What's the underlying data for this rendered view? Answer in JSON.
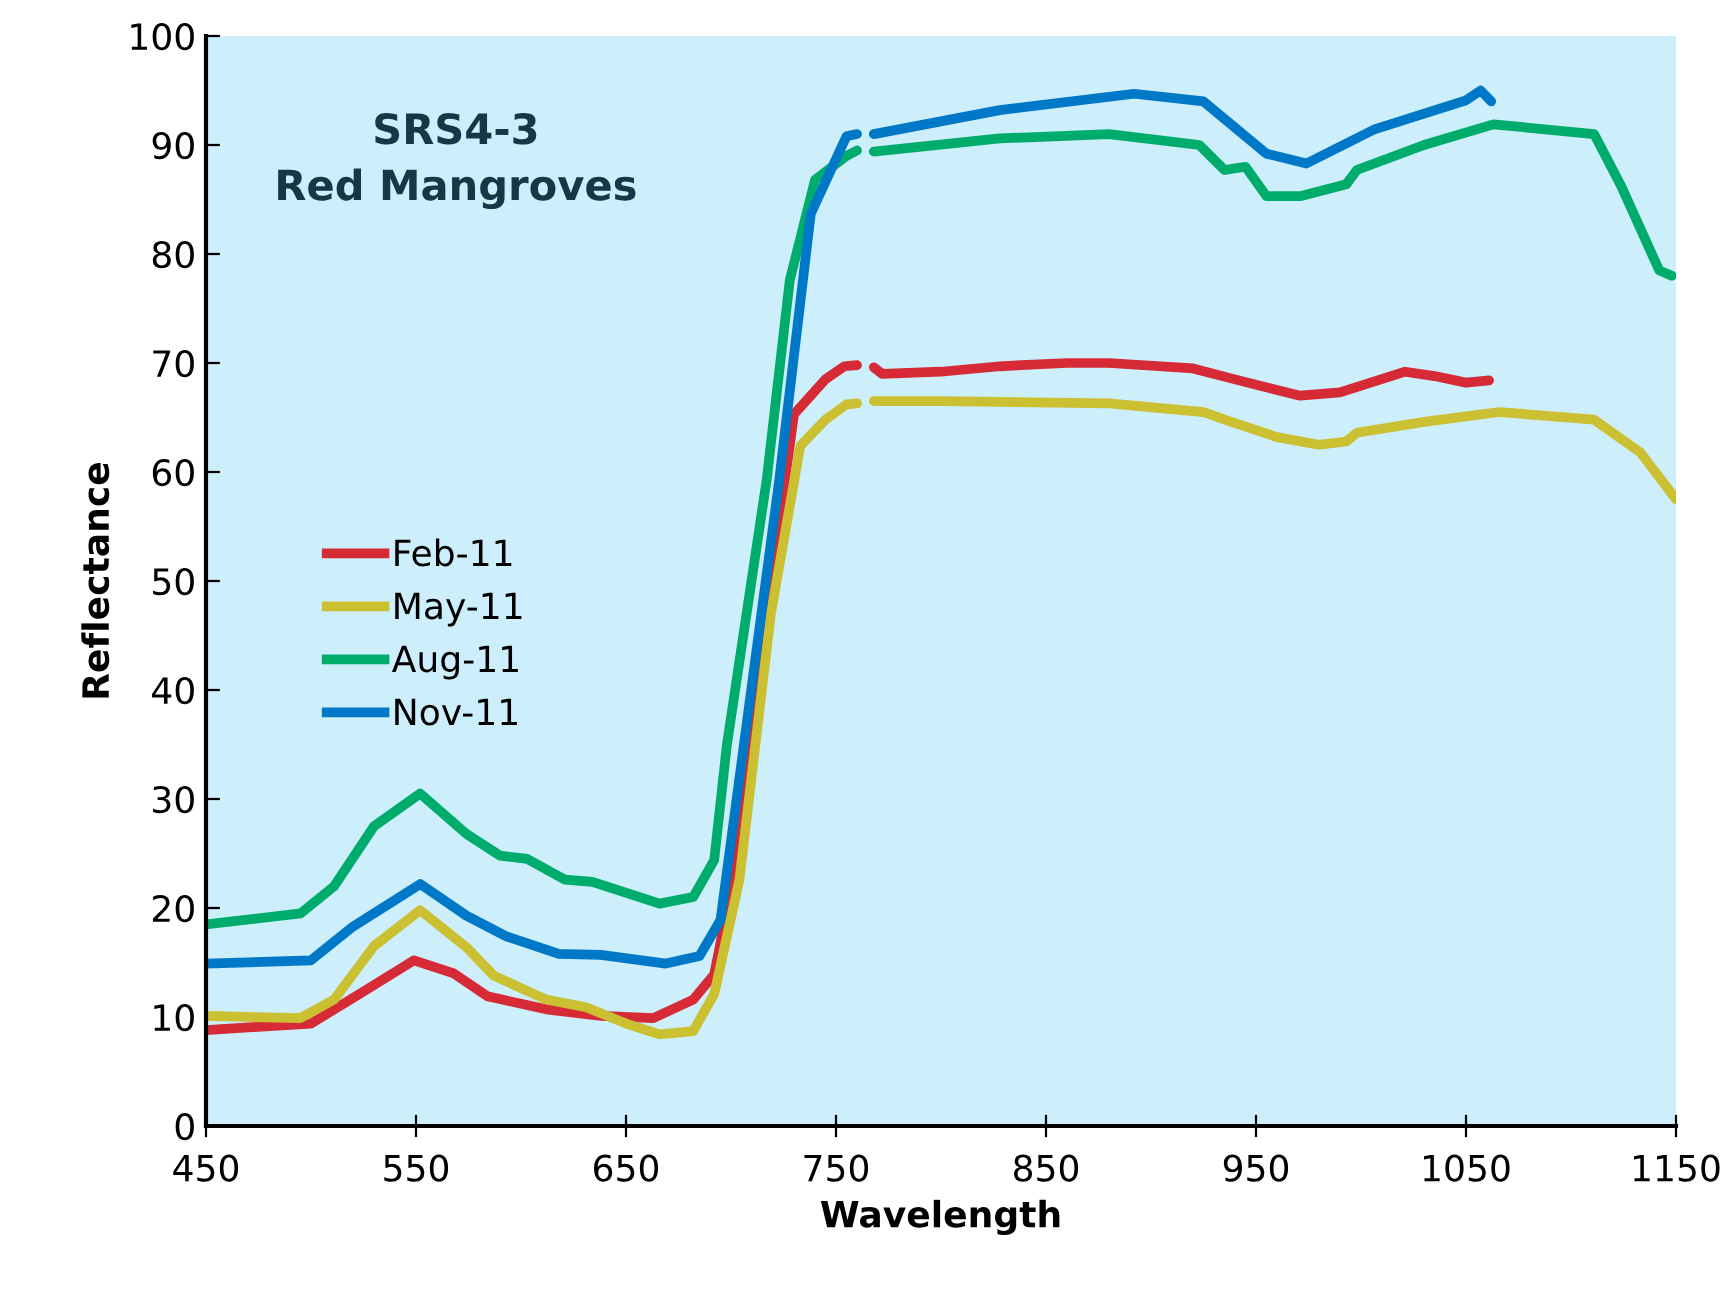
{
  "chart_data": {
    "type": "line",
    "title": "SRS4-3\nRed Mangroves",
    "xlabel": "Wavelength",
    "ylabel": "Reflectance",
    "xlim": [
      450,
      1150
    ],
    "xticks": [
      450,
      550,
      650,
      750,
      850,
      950,
      1050,
      1150
    ],
    "ylim": [
      0,
      100
    ],
    "yticks": [
      0,
      10,
      20,
      30,
      40,
      50,
      60,
      70,
      80,
      90,
      100
    ],
    "grid": false,
    "legend": "left",
    "marker": "none",
    "line_style": "solid",
    "series": [
      {
        "name": "Feb-11",
        "color": "#d62a36",
        "x": [
          450,
          500,
          523,
          549,
          568,
          584,
          612,
          638,
          663,
          682,
          692,
          701,
          717,
          730,
          745,
          754,
          760,
          762,
          768,
          772,
          800,
          828,
          860,
          880,
          920,
          940,
          971,
          990,
          1021,
          1035,
          1050,
          1061
        ],
        "values": [
          8.8,
          9.4,
          12.1,
          15.2,
          14,
          11.9,
          10.7,
          10.1,
          9.9,
          11.6,
          13.9,
          22.6,
          47,
          65.3,
          68.5,
          69.7,
          69.8,
          null,
          69.6,
          69,
          69.2,
          69.7,
          70,
          70,
          69.5,
          68.5,
          67,
          67.3,
          69.2,
          68.8,
          68.2,
          68.4
        ]
      },
      {
        "name": "May-11",
        "color": "#cbbf32",
        "x": [
          450,
          495,
          511,
          530,
          552,
          574,
          587,
          612,
          631,
          650,
          666,
          682,
          692,
          704,
          719,
          733,
          745,
          755,
          760,
          762,
          768,
          800,
          880,
          925,
          935,
          960,
          980,
          993,
          998,
          1030,
          1066,
          1111,
          1133,
          1150
        ],
        "values": [
          10.1,
          9.9,
          11.6,
          16.5,
          19.8,
          16.4,
          13.8,
          11.6,
          10.9,
          9.4,
          8.4,
          8.7,
          12.1,
          22.6,
          47,
          62.4,
          64.8,
          66.2,
          66.3,
          null,
          66.5,
          66.5,
          66.3,
          65.5,
          64.8,
          63.2,
          62.5,
          62.8,
          63.6,
          64.6,
          65.5,
          64.8,
          61.8,
          57.5
        ]
      },
      {
        "name": "Aug-11",
        "color": "#00ac6b",
        "x": [
          450,
          495,
          511,
          530,
          552,
          574,
          590,
          603,
          621,
          634,
          666,
          682,
          692,
          698,
          717,
          728,
          740,
          755,
          760,
          762,
          768,
          828,
          880,
          923,
          935,
          945,
          955,
          971,
          993,
          998,
          1030,
          1063,
          1111,
          1124,
          1142,
          1148
        ],
        "values": [
          18.5,
          19.5,
          22,
          27.5,
          30.5,
          26.8,
          24.8,
          24.5,
          22.6,
          22.4,
          20.4,
          21,
          24.4,
          34.9,
          59.3,
          77.6,
          86.8,
          89,
          89.5,
          null,
          89.4,
          90.6,
          91,
          90,
          87.7,
          88,
          85.3,
          85.3,
          86.4,
          87.7,
          90,
          91.9,
          91,
          86.2,
          78.5,
          78
        ]
      },
      {
        "name": "Nov-11",
        "color": "#0078c8",
        "x": [
          450,
          500,
          520,
          552,
          574,
          593,
          618,
          638,
          669,
          685,
          695,
          723,
          738,
          755,
          760,
          762,
          768,
          828,
          892,
          925,
          955,
          974,
          1006,
          1050,
          1057,
          1062
        ],
        "values": [
          14.9,
          15.2,
          18.3,
          22.2,
          19.3,
          17.4,
          15.8,
          15.7,
          14.9,
          15.6,
          18.9,
          59.3,
          83.7,
          90.8,
          91,
          null,
          91,
          93.2,
          94.7,
          94,
          89.2,
          88.3,
          91.4,
          94.1,
          95,
          94
        ]
      }
    ]
  }
}
